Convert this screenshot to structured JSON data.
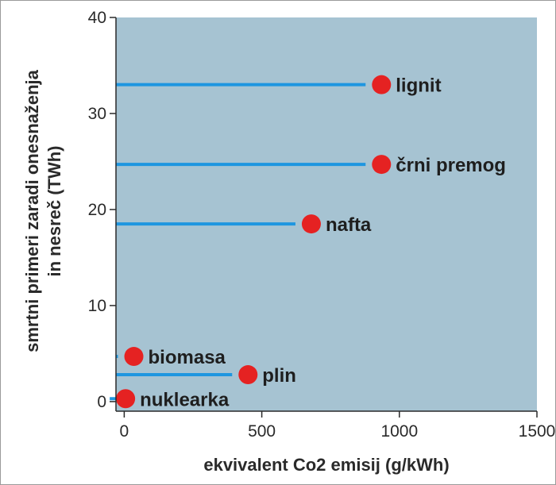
{
  "chart_data": {
    "type": "scatter",
    "xlabel": "ekvivalent Co2 emisij (g/kWh)",
    "ylabel_line1": "smrtni primeri zaradi onesnaženja",
    "ylabel_line2": "in nesreč (TWh)",
    "xlim": [
      -30,
      1500
    ],
    "ylim": [
      -1,
      40
    ],
    "xticks": [
      0,
      500,
      1000,
      1500
    ],
    "yticks": [
      0,
      10,
      20,
      30,
      40
    ],
    "grid": false,
    "colors": {
      "plot_bg": "#a6c3d2",
      "bar": "#1e96e0",
      "point": "#e52222",
      "text": "#1e1e1e"
    },
    "points": [
      {
        "label": "lignit",
        "x": 935,
        "y": 33.0
      },
      {
        "label": "črni premog",
        "x": 935,
        "y": 24.7
      },
      {
        "label": "nafta",
        "x": 680,
        "y": 18.5
      },
      {
        "label": "biomasa",
        "x": 35,
        "y": 4.7
      },
      {
        "label": "plin",
        "x": 450,
        "y": 2.8
      },
      {
        "label": "nuklearka",
        "x": 5,
        "y": 0.3
      }
    ]
  }
}
